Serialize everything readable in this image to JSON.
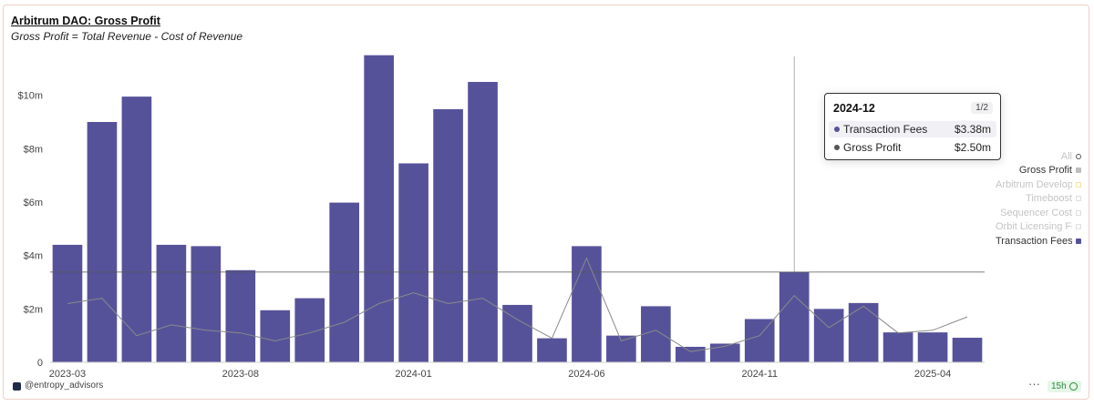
{
  "header": {
    "title": "Arbitrum DAO: Gross Profit",
    "subtitle": "Gross Profit = Total Revenue - Cost of Revenue"
  },
  "chart_data": {
    "type": "bar",
    "categories": [
      "2023-03",
      "2023-04",
      "2023-05",
      "2023-06",
      "2023-07",
      "2023-08",
      "2023-09",
      "2023-10",
      "2023-11",
      "2023-12",
      "2024-01",
      "2024-02",
      "2024-03",
      "2024-04",
      "2024-05",
      "2024-06",
      "2024-07",
      "2024-08",
      "2024-09",
      "2024-10",
      "2024-11",
      "2024-12",
      "2025-01",
      "2025-02",
      "2025-03",
      "2025-04",
      "2025-05"
    ],
    "x_tick_labels": [
      "2023-03",
      "2023-08",
      "2024-01",
      "2024-06",
      "2024-11",
      "2025-04"
    ],
    "series": [
      {
        "name": "Transaction Fees",
        "type": "bar",
        "color": "#56529a",
        "values": [
          4.4,
          9.0,
          9.95,
          4.4,
          4.35,
          3.45,
          1.95,
          2.4,
          5.98,
          11.5,
          7.45,
          9.48,
          10.5,
          2.15,
          0.9,
          4.35,
          1.0,
          2.1,
          0.58,
          0.7,
          1.62,
          3.38,
          2.0,
          2.22,
          1.12,
          1.12,
          0.92
        ]
      },
      {
        "name": "Gross Profit",
        "type": "line",
        "color": "#8a8a8a",
        "values": [
          2.2,
          2.4,
          1.0,
          1.4,
          1.2,
          1.1,
          0.8,
          1.1,
          1.5,
          2.2,
          2.6,
          2.2,
          2.4,
          1.6,
          0.9,
          3.9,
          0.8,
          1.2,
          0.4,
          0.6,
          1.0,
          2.5,
          1.3,
          2.1,
          1.1,
          1.2,
          1.7
        ]
      }
    ],
    "yticks": [
      "0",
      "$2m",
      "$4m",
      "$6m",
      "$8m",
      "$10m"
    ],
    "ylim": [
      0,
      12
    ],
    "hover_category": "2024-12",
    "grid": false,
    "legend_position": "right"
  },
  "legend": [
    {
      "label": "All",
      "active": false,
      "swatch": "#ffffff",
      "border": "#555555"
    },
    {
      "label": "Gross Profit",
      "active": true,
      "swatch": "#bdbdbd",
      "border": "#bdbdbd"
    },
    {
      "label": "Arbitrum Developers",
      "active": false,
      "swatch": "#ffffff",
      "border": "#f1e3a6"
    },
    {
      "label": "Timeboost",
      "active": false,
      "swatch": "#ffffff",
      "border": "#dddddd"
    },
    {
      "label": "Sequencer Cost",
      "active": false,
      "swatch": "#ffffff",
      "border": "#dddddd"
    },
    {
      "label": "Orbit Licensing Fees",
      "active": false,
      "swatch": "#ffffff",
      "border": "#dddddd"
    },
    {
      "label": "Transaction Fees",
      "active": true,
      "swatch": "#56529a",
      "border": "#56529a"
    }
  ],
  "tooltip": {
    "period": "2024-12",
    "page": "1/2",
    "rows": [
      {
        "name": "Transaction Fees",
        "value": "$3.38m",
        "color": "#56529a"
      },
      {
        "name": "Gross Profit",
        "value": "$2.50m",
        "color": "#555555"
      }
    ]
  },
  "footer": {
    "handle": "@entropy_advisors",
    "menu": "···",
    "refresh": "15h"
  }
}
